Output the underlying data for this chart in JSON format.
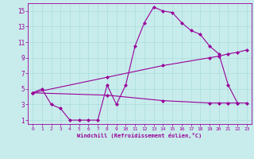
{
  "xlabel": "Windchill (Refroidissement éolien,°C)",
  "bg_color": "#c8ecec",
  "line_color": "#990099",
  "xlim": [
    -0.5,
    23.5
  ],
  "ylim": [
    0.5,
    16.0
  ],
  "xticks": [
    0,
    1,
    2,
    3,
    4,
    5,
    6,
    7,
    8,
    9,
    10,
    11,
    12,
    13,
    14,
    15,
    16,
    17,
    18,
    19,
    20,
    21,
    22,
    23
  ],
  "yticks": [
    1,
    3,
    5,
    7,
    9,
    11,
    13,
    15
  ],
  "line1_y": [
    4.5,
    5.0,
    3.0,
    2.5,
    1.0,
    1.0,
    1.0,
    1.0,
    5.5,
    3.0,
    5.5,
    10.5,
    13.5,
    15.5,
    15.0,
    14.8,
    13.5,
    12.5,
    12.0,
    10.5,
    9.5,
    5.5,
    3.2,
    null
  ],
  "line2_pts": [
    [
      0,
      4.5
    ],
    [
      8,
      6.5
    ],
    [
      14,
      8.0
    ],
    [
      19,
      9.0
    ],
    [
      20,
      9.2
    ],
    [
      21,
      9.5
    ],
    [
      22,
      9.7
    ],
    [
      23,
      10.0
    ]
  ],
  "line3_pts": [
    [
      0,
      4.5
    ],
    [
      8,
      4.2
    ],
    [
      14,
      3.5
    ],
    [
      19,
      3.2
    ],
    [
      20,
      3.2
    ],
    [
      21,
      3.2
    ],
    [
      22,
      3.2
    ],
    [
      23,
      3.2
    ]
  ],
  "grid_color": "#aadddd",
  "markersize": 2.5,
  "linewidth": 0.8
}
